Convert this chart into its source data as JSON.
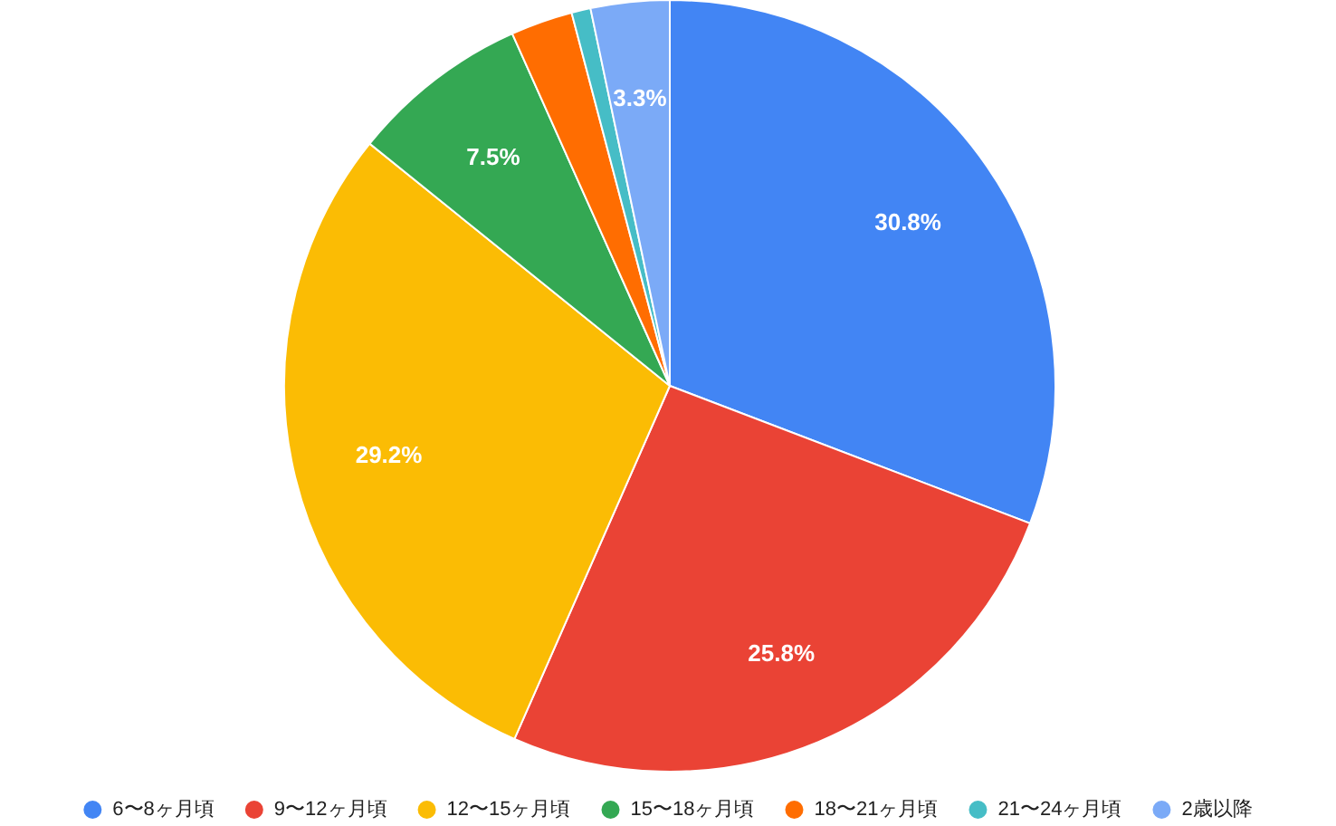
{
  "chart_data": {
    "type": "pie",
    "categories": [
      "6〜8ヶ月頃",
      "9〜12ヶ月頃",
      "12〜15ヶ月頃",
      "15〜18ヶ月頃",
      "18〜21ヶ月頃",
      "21〜24ヶ月頃",
      "2歳以降"
    ],
    "values": [
      30.8,
      25.8,
      29.2,
      7.5,
      2.6,
      0.8,
      3.3
    ],
    "colors": [
      "#4285f4",
      "#ea4335",
      "#fbbc04",
      "#34a853",
      "#ff6d01",
      "#46bdc6",
      "#7baaf7"
    ],
    "value_labels": [
      "30.8%",
      "25.8%",
      "29.2%",
      "7.5%",
      null,
      null,
      "3.3%"
    ],
    "legend": "bottom"
  }
}
